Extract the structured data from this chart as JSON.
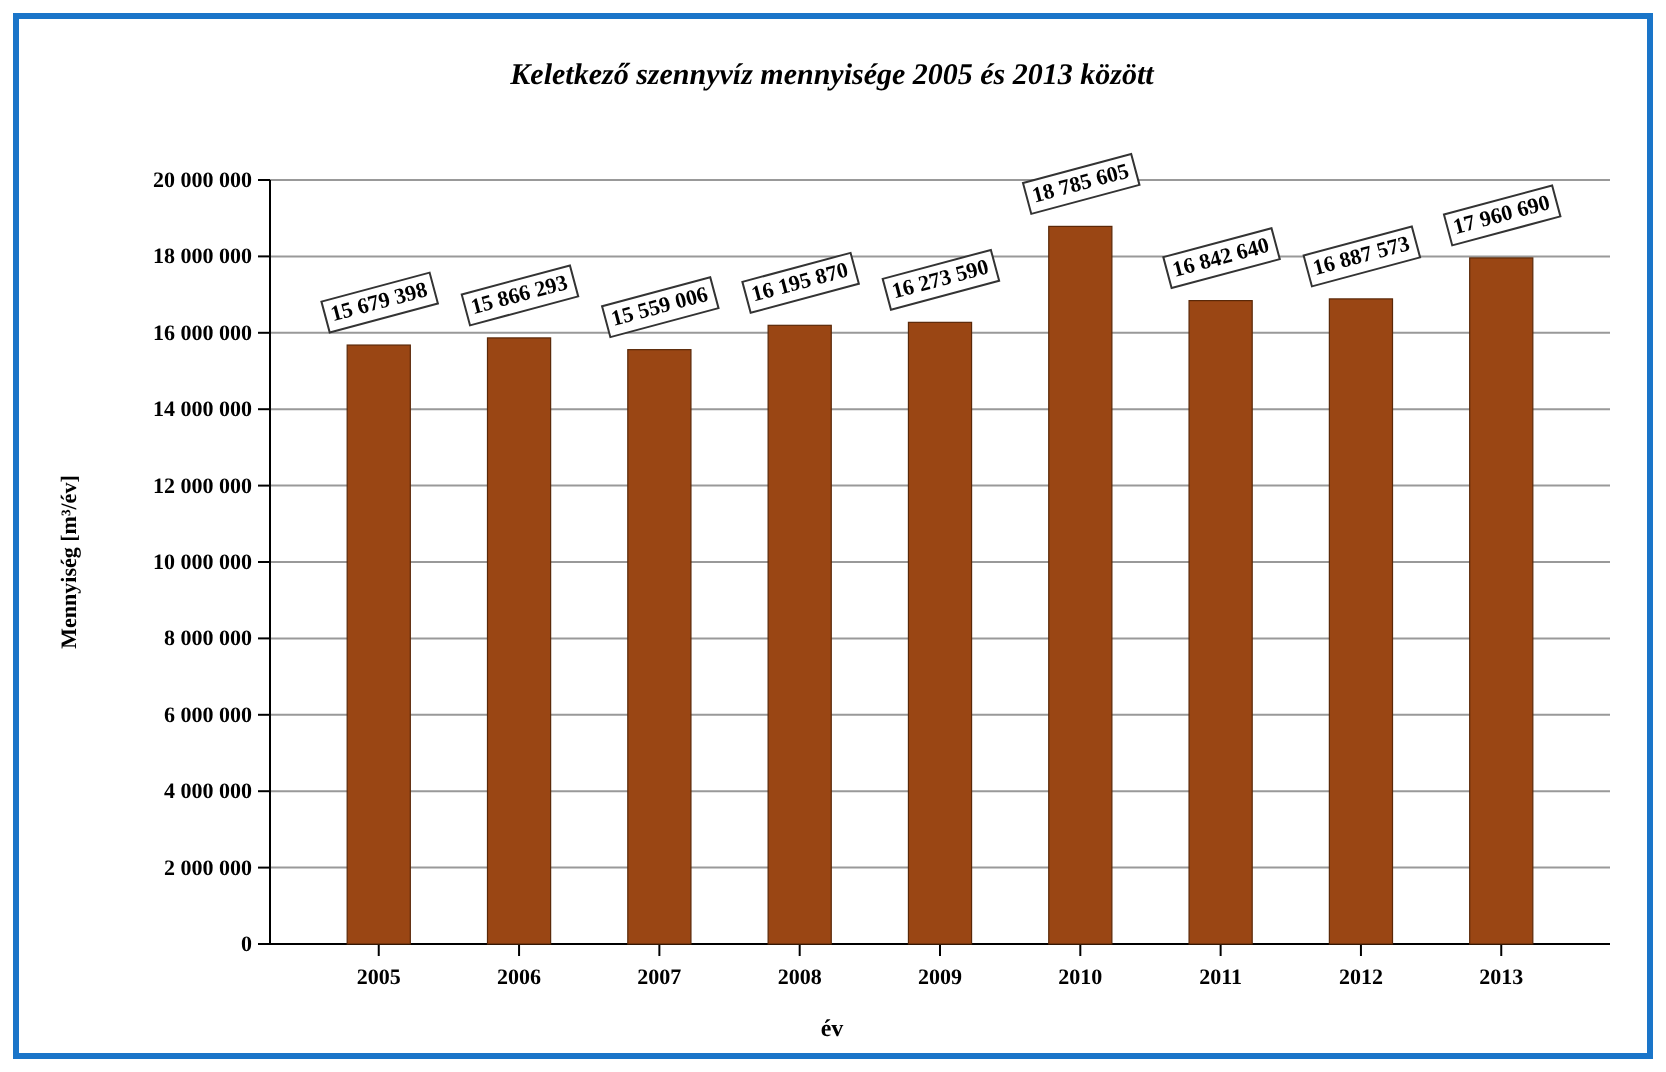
{
  "chart_data": {
    "type": "bar",
    "title": "Keletkező szennyvíz mennyisége 2005 és 2013 között",
    "xlabel": "év",
    "ylabel": "Mennyiség [m³/év]",
    "categories": [
      "2005",
      "2006",
      "2007",
      "2008",
      "2009",
      "2010",
      "2011",
      "2012",
      "2013"
    ],
    "values": [
      15679398,
      15866293,
      15559006,
      16195870,
      16273590,
      18785605,
      16842640,
      16887573,
      17960690
    ],
    "value_labels": [
      "15 679 398",
      "15 866 293",
      "15 559 006",
      "16 195 870",
      "16 273 590",
      "18 785 605",
      "16 842 640",
      "16 887 573",
      "17 960 690"
    ],
    "color": "#9a4614",
    "ylim": [
      0,
      20000000
    ],
    "yticks": [
      {
        "value": 0,
        "label": "0"
      },
      {
        "value": 2000000,
        "label": "2 000 000"
      },
      {
        "value": 4000000,
        "label": "4 000 000"
      },
      {
        "value": 6000000,
        "label": "6 000 000"
      },
      {
        "value": 8000000,
        "label": "8 000 000"
      },
      {
        "value": 10000000,
        "label": "10 000 000"
      },
      {
        "value": 12000000,
        "label": "12 000 000"
      },
      {
        "value": 14000000,
        "label": "14 000 000"
      },
      {
        "value": 16000000,
        "label": "16 000 000"
      },
      {
        "value": 18000000,
        "label": "18 000 000"
      },
      {
        "value": 20000000,
        "label": "20 000 000"
      }
    ],
    "grid": "y"
  }
}
